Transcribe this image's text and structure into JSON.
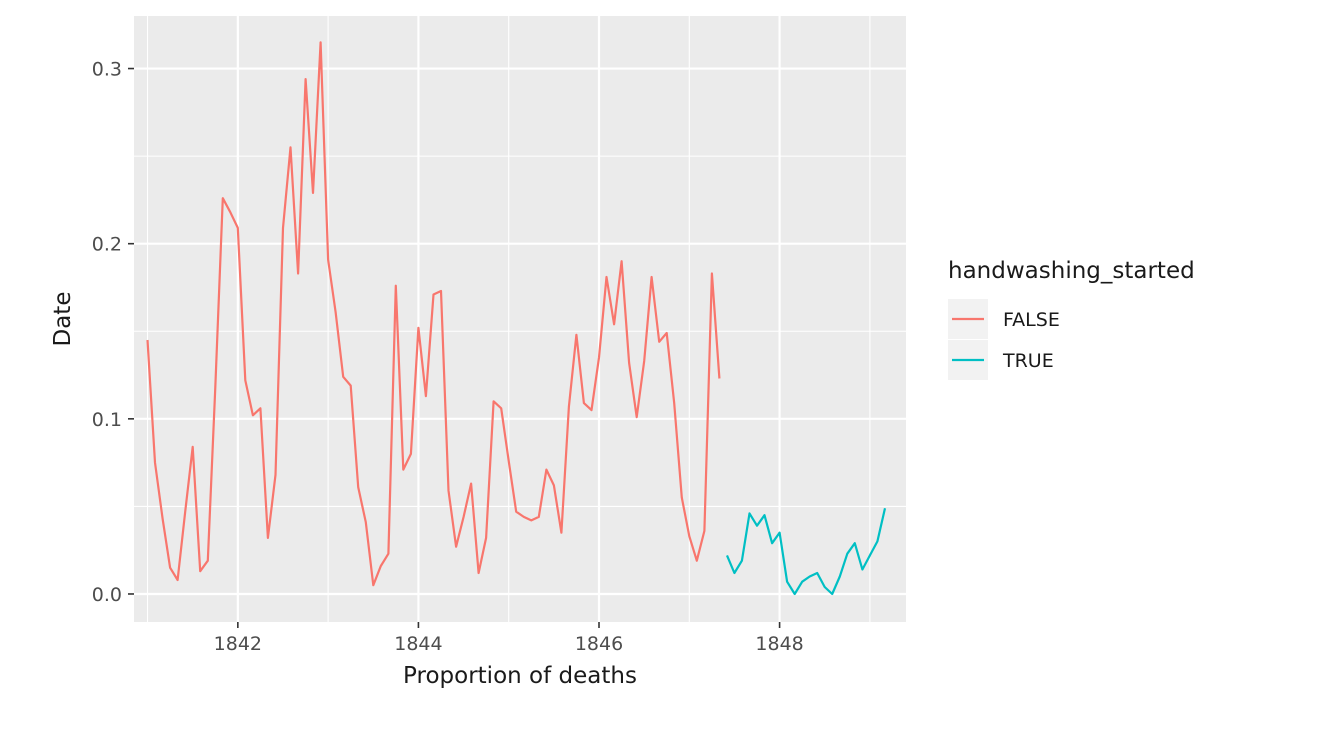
{
  "chart_data": {
    "type": "line",
    "xlabel": "Proportion of deaths",
    "ylabel": "Date",
    "xlim": [
      1840.85,
      1849.4
    ],
    "ylim": [
      -0.016,
      0.33
    ],
    "x_ticks": [
      1842,
      1844,
      1846,
      1848
    ],
    "y_ticks": [
      0.0,
      0.1,
      0.2,
      0.3
    ],
    "y_tick_labels": [
      "0.0",
      "0.1",
      "0.2",
      "0.3"
    ],
    "grid": true,
    "panel_background": "#ebebeb",
    "legend": {
      "title": "handwashing_started",
      "placement": "right"
    },
    "series": [
      {
        "name": "FALSE",
        "color": "#f8766d",
        "x": [
          1841.0,
          1841.083,
          1841.167,
          1841.25,
          1841.333,
          1841.417,
          1841.5,
          1841.583,
          1841.667,
          1841.75,
          1841.833,
          1841.917,
          1842.0,
          1842.083,
          1842.167,
          1842.25,
          1842.333,
          1842.417,
          1842.5,
          1842.583,
          1842.667,
          1842.75,
          1842.833,
          1842.917,
          1843.0,
          1843.083,
          1843.167,
          1843.25,
          1843.333,
          1843.417,
          1843.5,
          1843.583,
          1843.667,
          1843.75,
          1843.833,
          1843.917,
          1844.0,
          1844.083,
          1844.167,
          1844.25,
          1844.333,
          1844.417,
          1844.5,
          1844.583,
          1844.667,
          1844.75,
          1844.833,
          1844.917,
          1845.0,
          1845.083,
          1845.167,
          1845.25,
          1845.333,
          1845.417,
          1845.5,
          1845.583,
          1845.667,
          1845.75,
          1845.833,
          1845.917,
          1846.0,
          1846.083,
          1846.167,
          1846.25,
          1846.333,
          1846.417,
          1846.5,
          1846.583,
          1846.667,
          1846.75,
          1846.833,
          1846.917,
          1847.0,
          1847.083,
          1847.167,
          1847.25,
          1847.333
        ],
        "values": [
          0.145,
          0.075,
          0.043,
          0.015,
          0.008,
          0.047,
          0.084,
          0.013,
          0.019,
          0.118,
          0.226,
          0.218,
          0.209,
          0.122,
          0.102,
          0.106,
          0.032,
          0.068,
          0.209,
          0.255,
          0.183,
          0.294,
          0.229,
          0.315,
          0.191,
          0.161,
          0.124,
          0.119,
          0.061,
          0.041,
          0.005,
          0.016,
          0.023,
          0.176,
          0.071,
          0.08,
          0.152,
          0.113,
          0.171,
          0.173,
          0.059,
          0.027,
          0.044,
          0.063,
          0.012,
          0.032,
          0.11,
          0.106,
          0.076,
          0.047,
          0.044,
          0.042,
          0.044,
          0.071,
          0.062,
          0.035,
          0.107,
          0.148,
          0.109,
          0.105,
          0.135,
          0.181,
          0.154,
          0.19,
          0.132,
          0.101,
          0.133,
          0.181,
          0.144,
          0.149,
          0.109,
          0.055,
          0.033,
          0.019,
          0.036,
          0.183,
          0.123
        ]
      },
      {
        "name": "TRUE",
        "color": "#00bfc4",
        "x": [
          1847.417,
          1847.5,
          1847.583,
          1847.667,
          1847.75,
          1847.833,
          1847.917,
          1848.0,
          1848.083,
          1848.167,
          1848.25,
          1848.333,
          1848.417,
          1848.5,
          1848.583,
          1848.667,
          1848.75,
          1848.833,
          1848.917,
          1849.0,
          1849.083,
          1849.167
        ],
        "values": [
          0.022,
          0.012,
          0.019,
          0.046,
          0.039,
          0.045,
          0.029,
          0.035,
          0.007,
          0.0,
          0.007,
          0.01,
          0.012,
          0.004,
          0.0,
          0.01,
          0.023,
          0.029,
          0.014,
          0.022,
          0.03,
          0.049
        ]
      }
    ]
  }
}
